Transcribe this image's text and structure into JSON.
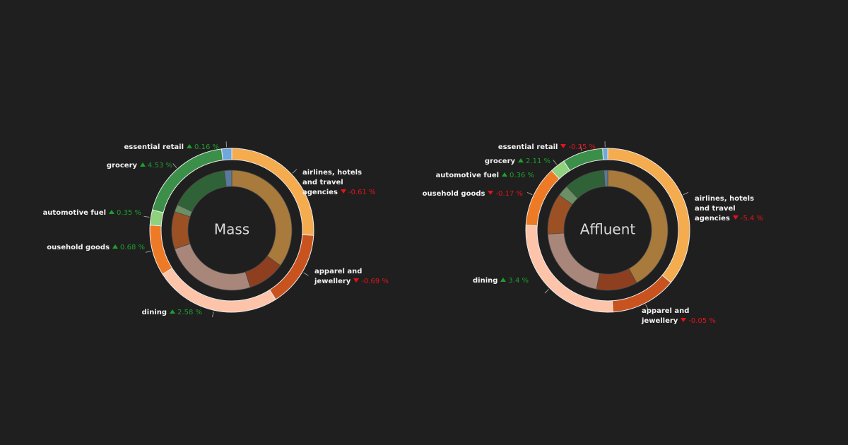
{
  "chart_data": [
    {
      "type": "donut",
      "center_label": "Mass",
      "categories": [
        "airlines, hotels and travel agencies",
        "apparel and jewellery",
        "dining",
        "ousehold goods",
        "automotive fuel",
        "grocery",
        "essential retail"
      ],
      "series": [
        {
          "colors": [
            "#f5ac4f",
            "#c9531f",
            "#fdc4a9",
            "#ef7a26",
            "#8fd17c",
            "#3b8f48",
            "#6fa8dc"
          ],
          "values": [
            26,
            15,
            25,
            10,
            3,
            19,
            2
          ]
        },
        {
          "colors": [
            "#a87a3c",
            "#8e3f20",
            "#a8877a",
            "#9c5125",
            "#6d8f65",
            "#2f6337",
            "#5a7a99"
          ],
          "values": [
            35,
            10,
            25,
            10,
            2,
            16,
            2
          ]
        }
      ],
      "values": [
        -0.61,
        -0.69,
        2.58,
        0.68,
        0.35,
        4.53,
        0.16
      ],
      "value_labels": [
        "-0.61 %",
        "-0.69 %",
        "2.58 %",
        "0.68 %",
        "0.35 %",
        "4.53 %",
        "0.16 %"
      ],
      "up_color": "#1e9e2e",
      "down_color": "#e3131b"
    },
    {
      "type": "donut",
      "center_label": "Affluent",
      "categories": [
        "airlines, hotels and travel agencies",
        "apparel and jewellery",
        "dining",
        "ousehold goods",
        "automotive fuel",
        "grocery",
        "essential retail"
      ],
      "series": [
        {
          "colors": [
            "#f5ac4f",
            "#c9531f",
            "#fdc4a9",
            "#ef7a26",
            "#8fd17c",
            "#3b8f48",
            "#6fa8dc"
          ],
          "values": [
            36,
            13,
            27,
            12,
            3,
            8,
            1
          ]
        },
        {
          "colors": [
            "#a87a3c",
            "#8e3f20",
            "#a8877a",
            "#9c5125",
            "#6d8f65",
            "#2f6337",
            "#5a7a99"
          ],
          "values": [
            42,
            11,
            21,
            11,
            3,
            11,
            1
          ]
        }
      ],
      "values": [
        -5.4,
        -0.05,
        3.4,
        -0.17,
        0.36,
        2.11,
        -0.25
      ],
      "value_labels": [
        "-5.4 %",
        "-0.05 %",
        "3.4 %",
        "-0.17 %",
        "0.36 %",
        "2.11 %",
        "-0.25 %"
      ],
      "up_color": "#1e9e2e",
      "down_color": "#e3131b"
    }
  ]
}
